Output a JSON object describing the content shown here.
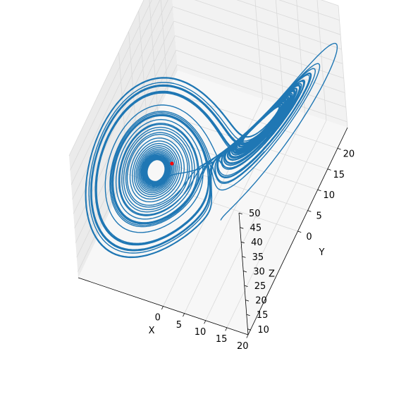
{
  "chart_data": {
    "type": "line",
    "projection": "3d",
    "title": "",
    "xlabel": "X",
    "ylabel": "Y",
    "zlabel": "Z",
    "x_ticks": [
      "0",
      "5",
      "10",
      "15",
      "20"
    ],
    "y_ticks": [
      "0",
      "5",
      "10",
      "15",
      "20"
    ],
    "z_ticks": [
      "10",
      "15",
      "20",
      "25",
      "30",
      "35",
      "40",
      "45",
      "50"
    ],
    "xlim": [
      -20,
      20
    ],
    "ylim": [
      -25,
      25
    ],
    "zlim": [
      8,
      50
    ],
    "grid": true,
    "series": [
      {
        "kind": "trajectory",
        "system": "lorenz",
        "params": {
          "sigma": 10,
          "rho": 28,
          "beta": 2.6667
        },
        "initial_state": [
          1.0,
          1.0,
          1.0
        ],
        "dt": 0.005,
        "steps": 14000,
        "color": "#1f77b4"
      }
    ],
    "marker": {
      "x": -5.9,
      "y": -5.9,
      "z": 27.0,
      "color": "#ff0000"
    }
  },
  "colors": {
    "pane_left": "#ebebeb",
    "pane_back": "#f2f2f2",
    "pane_floor": "#f7f7f7",
    "grid": "#d9d9d9",
    "axis_line": "#000000"
  }
}
